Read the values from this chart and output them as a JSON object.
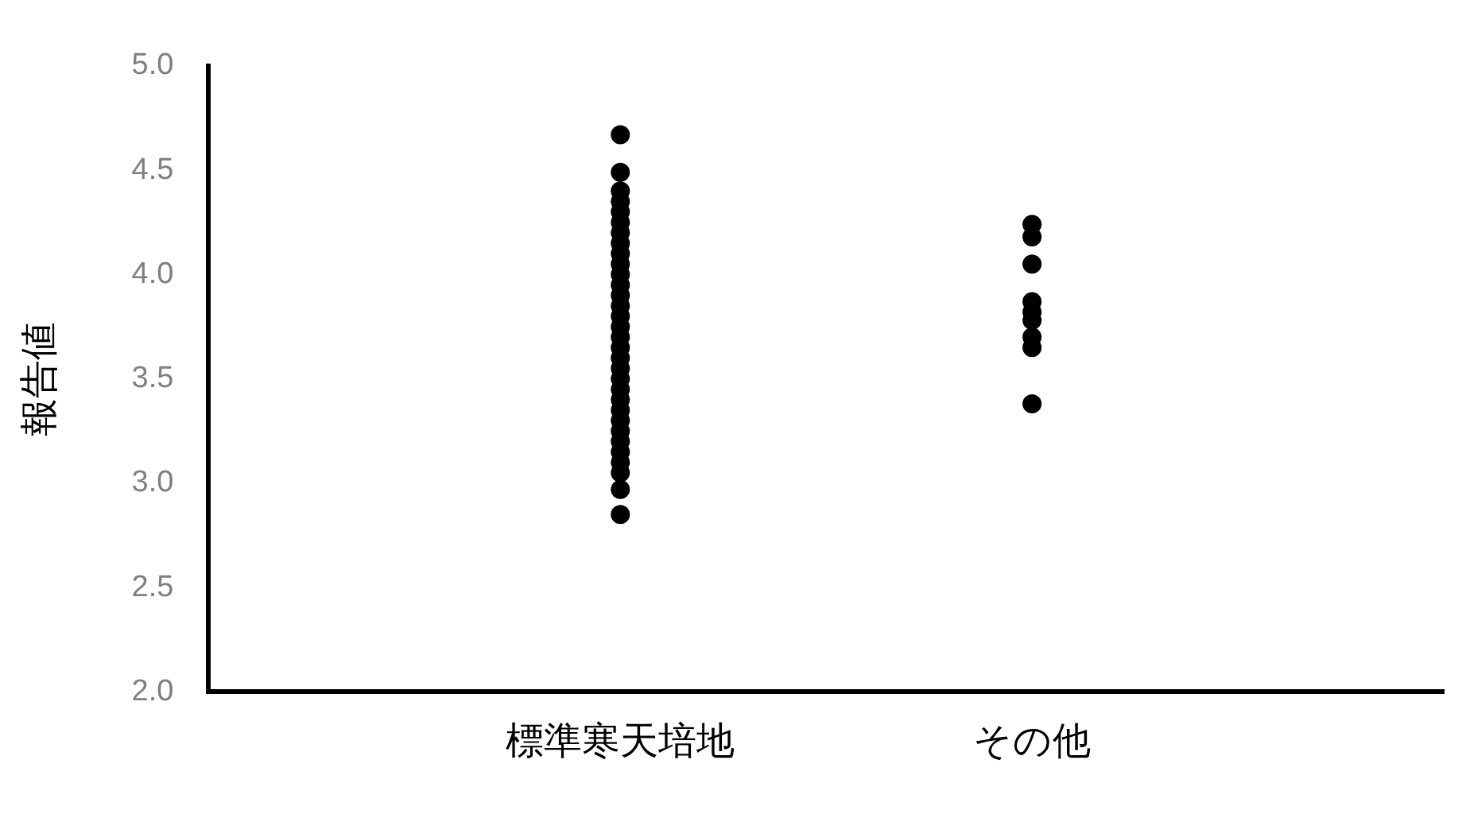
{
  "chart_data": {
    "type": "scatter",
    "ylabel": "報告値",
    "categories": [
      "標準寒天培地",
      "その他"
    ],
    "series": [
      {
        "color": "#000000",
        "x": [
          "標準寒天培地",
          "標準寒天培地",
          "標準寒天培地",
          "標準寒天培地",
          "標準寒天培地",
          "標準寒天培地",
          "標準寒天培地",
          "標準寒天培地",
          "標準寒天培地",
          "標準寒天培地",
          "標準寒天培地",
          "標準寒天培地",
          "標準寒天培地",
          "標準寒天培地",
          "標準寒天培地",
          "標準寒天培地",
          "標準寒天培地",
          "標準寒天培地",
          "標準寒天培地",
          "標準寒天培地",
          "標準寒天培地",
          "標準寒天培地",
          "標準寒天培地",
          "標準寒天培地",
          "標準寒天培地",
          "標準寒天培地",
          "標準寒天培地",
          "標準寒天培地",
          "標準寒天培地",
          "標準寒天培地",
          "標準寒天培地",
          "標準寒天培地"
        ],
        "values": [
          2.85,
          2.97,
          3.05,
          3.1,
          3.15,
          3.2,
          3.25,
          3.3,
          3.35,
          3.4,
          3.45,
          3.5,
          3.55,
          3.6,
          3.65,
          3.7,
          3.75,
          3.8,
          3.85,
          3.9,
          3.95,
          4.0,
          4.05,
          4.1,
          4.15,
          4.2,
          4.25,
          4.3,
          4.35,
          4.4,
          4.49,
          4.67
        ]
      },
      {
        "color": "#000000",
        "x": [
          "その他",
          "その他",
          "その他",
          "その他",
          "その他",
          "その他",
          "その他",
          "その他",
          "その他"
        ],
        "values": [
          3.38,
          3.65,
          3.7,
          3.78,
          3.82,
          3.87,
          4.05,
          4.18,
          4.24
        ]
      }
    ],
    "ylim": [
      2.0,
      5.0
    ],
    "yticks": [
      {
        "value": 2,
        "label": "2.0"
      },
      {
        "value": 2.5,
        "label": "2.5"
      },
      {
        "value": 3,
        "label": "3.0"
      },
      {
        "value": 3.5,
        "label": "3.5"
      },
      {
        "value": 4,
        "label": "4.0"
      },
      {
        "value": 4.5,
        "label": "4.5"
      },
      {
        "value": 5,
        "label": "5.0"
      }
    ],
    "grid": false,
    "legend": false,
    "marker": "circle"
  }
}
